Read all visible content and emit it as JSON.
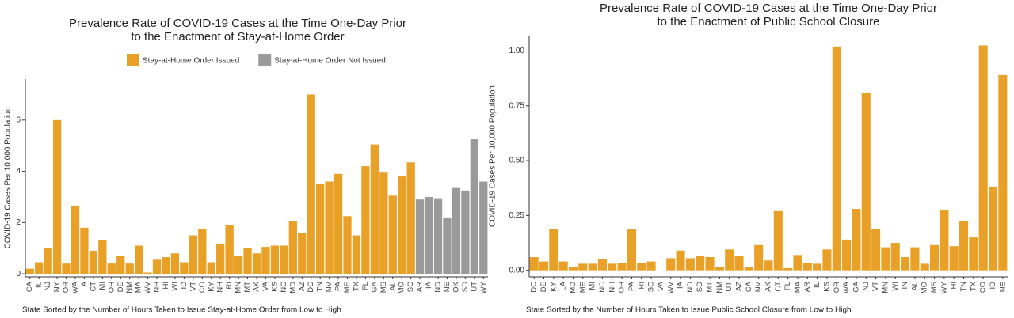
{
  "chart_data": [
    {
      "type": "bar",
      "title": [
        "Prevalence Rate of COVID-19 Cases at the Time One-Day Prior",
        "to the Enactment of Stay-at-Home Order"
      ],
      "x_label": "State Sorted by the Number of Hours Taken to Issue Stay-at-Home Order from Low to High",
      "y_label": "COVID-19 Cases Per 10,000 Population",
      "categories": [
        "CA",
        "IL",
        "NJ",
        "NY",
        "OR",
        "WA",
        "LA",
        "CT",
        "MI",
        "OH",
        "DE",
        "NM",
        "MA",
        "WV",
        "NH",
        "HI",
        "WI",
        "ID",
        "VT",
        "CO",
        "KY",
        "NH",
        "RI",
        "MN",
        "MT",
        "AK",
        "VA",
        "KS",
        "NC",
        "MD",
        "AZ",
        "DC",
        "TN",
        "NV",
        "PA",
        "ME",
        "TX",
        "FL",
        "GA",
        "MS",
        "AL",
        "MO",
        "SC",
        "AR",
        "IA",
        "ND",
        "NE",
        "OK",
        "SD",
        "UT",
        "WY"
      ],
      "series": [
        {
          "name": "Stay-at-Home Order Issued",
          "color": "#e8a027",
          "values": [
            0.2,
            0.45,
            1.0,
            6.0,
            0.4,
            2.65,
            1.8,
            0.9,
            1.3,
            0.4,
            0.7,
            0.4,
            1.1,
            0.05,
            0.55,
            0.65,
            0.8,
            0.45,
            1.5,
            1.75,
            0.45,
            1.15,
            1.9,
            0.7,
            1.0,
            0.8,
            1.05,
            1.1,
            1.1,
            2.05,
            1.6,
            7.0,
            3.5,
            3.6,
            3.9,
            2.25,
            1.5,
            4.2,
            5.05,
            3.95,
            3.05,
            3.8,
            4.35,
            null,
            null,
            null,
            null,
            null,
            null,
            null,
            null
          ]
        },
        {
          "name": "Stay-at-Home Order Not Issued",
          "color": "#9a9a9a",
          "values": [
            null,
            null,
            null,
            null,
            null,
            null,
            null,
            null,
            null,
            null,
            null,
            null,
            null,
            null,
            null,
            null,
            null,
            null,
            null,
            null,
            null,
            null,
            null,
            null,
            null,
            null,
            null,
            null,
            null,
            null,
            null,
            null,
            null,
            null,
            null,
            null,
            null,
            null,
            null,
            null,
            null,
            null,
            null,
            2.9,
            3.0,
            2.95,
            2.2,
            3.35,
            3.25,
            5.25,
            3.6
          ]
        }
      ],
      "ylim": [
        -0.12,
        7.6
      ],
      "yticks": [
        0,
        2,
        4,
        6
      ],
      "legend": "top"
    },
    {
      "type": "bar",
      "title": [
        "Prevalence Rate of COVID-19 Cases at the Time One-Day Prior",
        "to the Enactment of Public School Closure"
      ],
      "x_label": "State Sorted by the Number of Hours Taken to Issue Public School Closure from Low to High",
      "y_label": "COVID-19 Cases Per 10,000 Population",
      "categories": [
        "DC",
        "DE",
        "KY",
        "LA",
        "MD",
        "ME",
        "MI",
        "NC",
        "NH",
        "OH",
        "PA",
        "RI",
        "SC",
        "VA",
        "WV",
        "IA",
        "ND",
        "SD",
        "MT",
        "NM",
        "UT",
        "AZ",
        "CA",
        "NV",
        "AK",
        "CT",
        "FL",
        "MA",
        "AR",
        "IL",
        "KS",
        "OR",
        "WA",
        "GA",
        "NJ",
        "VT",
        "MN",
        "WI",
        "IN",
        "AL",
        "MO",
        "MS",
        "WY",
        "HI",
        "TN",
        "TX",
        "CO",
        "ID",
        "NE"
      ],
      "color": "#e8a027",
      "values": [
        0.06,
        0.04,
        0.19,
        0.04,
        0.015,
        0.03,
        0.03,
        0.05,
        0.03,
        0.035,
        0.19,
        0.035,
        0.04,
        0,
        0.055,
        0.09,
        0.055,
        0.065,
        0.06,
        0.015,
        0.095,
        0.065,
        0.015,
        0.115,
        0.045,
        0.27,
        0.01,
        0.07,
        0.035,
        0.03,
        0.095,
        1.02,
        0.14,
        0.28,
        0.81,
        0.19,
        0.105,
        0.125,
        0.06,
        0.105,
        0.03,
        0.115,
        0.275,
        0.11,
        0.225,
        0.15,
        1.025,
        0.38,
        0.89
      ],
      "ylim": [
        -0.03,
        1.07
      ],
      "yticks": [
        {
          "value": 0,
          "label": "0.00"
        },
        {
          "value": 0.25,
          "label": "0.25"
        },
        {
          "value": 0.5,
          "label": "0.50"
        },
        {
          "value": 0.75,
          "label": "0.75"
        },
        {
          "value": 1,
          "label": "1.00"
        }
      ]
    }
  ]
}
